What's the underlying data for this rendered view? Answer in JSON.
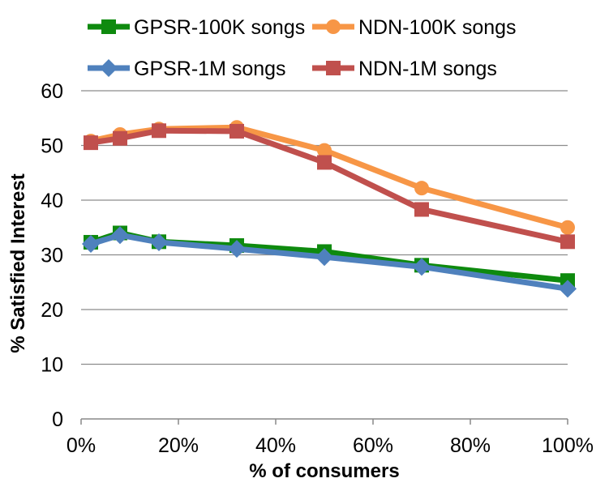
{
  "chart_data": {
    "type": "line",
    "title": "",
    "xlabel": "% of consumers",
    "ylabel": "% Satisfied Interest",
    "xlim": [
      0,
      100
    ],
    "ylim": [
      0,
      60
    ],
    "x_ticks": [
      0,
      20,
      40,
      60,
      80,
      100
    ],
    "x_tick_labels": [
      "0%",
      "20%",
      "40%",
      "60%",
      "80%",
      "100%"
    ],
    "y_ticks": [
      0,
      10,
      20,
      30,
      40,
      50,
      60
    ],
    "y_tick_labels": [
      "0",
      "10",
      "20",
      "30",
      "40",
      "50",
      "60"
    ],
    "grid": "horizontal",
    "legend_position": "top",
    "series": [
      {
        "name": "GPSR-100K songs",
        "color": "#0e8a0e",
        "marker": "square",
        "x": [
          2,
          8,
          16,
          32,
          50,
          70,
          100
        ],
        "values": [
          32.3,
          34.0,
          32.4,
          31.7,
          30.6,
          28.1,
          25.3
        ]
      },
      {
        "name": "NDN-100K songs",
        "color": "#f79646",
        "marker": "circle",
        "x": [
          2,
          8,
          16,
          32,
          50,
          70,
          100
        ],
        "values": [
          50.8,
          52.0,
          53.0,
          53.3,
          49.1,
          42.2,
          35.0
        ]
      },
      {
        "name": "GPSR-1M songs",
        "color": "#4f81bd",
        "marker": "diamond",
        "x": [
          2,
          8,
          16,
          32,
          50,
          70,
          100
        ],
        "values": [
          32.0,
          33.6,
          32.3,
          31.1,
          29.6,
          27.8,
          23.8
        ]
      },
      {
        "name": "NDN-1M songs",
        "color": "#c0504d",
        "marker": "square",
        "x": [
          2,
          8,
          16,
          32,
          50,
          70,
          100
        ],
        "values": [
          50.5,
          51.3,
          52.7,
          52.6,
          46.9,
          38.3,
          32.4
        ]
      }
    ]
  }
}
